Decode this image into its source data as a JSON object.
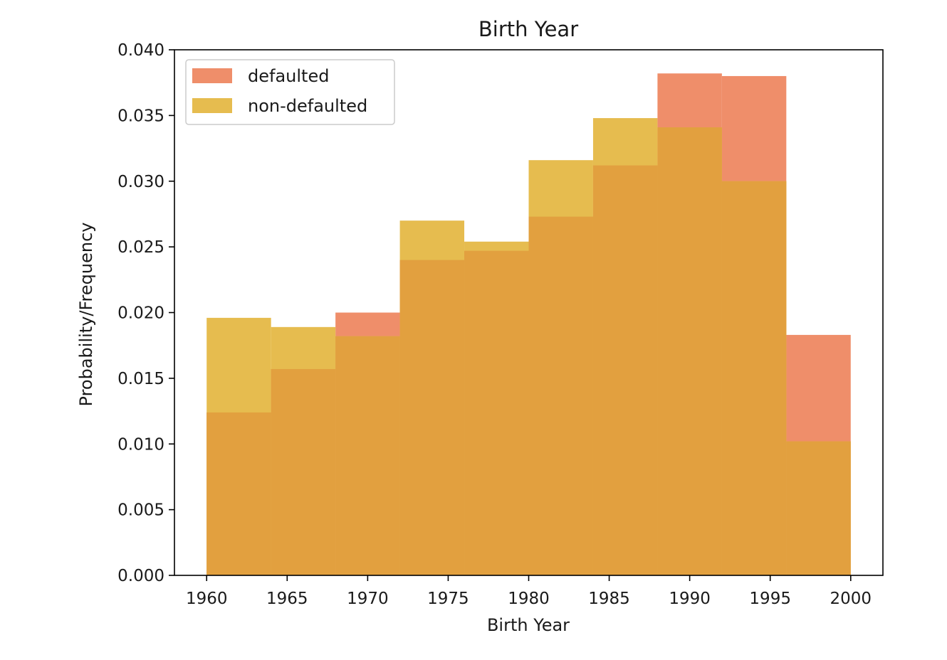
{
  "chart_data": {
    "type": "bar",
    "title": "Birth Year",
    "xlabel": "Birth Year",
    "ylabel": "Probability/Frequency",
    "xlim": [
      1958,
      2002
    ],
    "ylim": [
      0,
      0.04
    ],
    "xticks": [
      "1960",
      "1965",
      "1970",
      "1975",
      "1980",
      "1985",
      "1990",
      "1995",
      "2000"
    ],
    "yticks": [
      "0.000",
      "0.005",
      "0.010",
      "0.015",
      "0.020",
      "0.025",
      "0.030",
      "0.035",
      "0.040"
    ],
    "bin_edges": [
      1960,
      1964,
      1968,
      1972,
      1976,
      1980,
      1984,
      1988,
      1992,
      1996,
      2000
    ],
    "legend_position": "upper-left",
    "grid": false,
    "series": [
      {
        "name": "defaulted",
        "color": "#ef8e6a",
        "values": [
          0.0124,
          0.0157,
          0.02,
          0.024,
          0.0247,
          0.0273,
          0.0312,
          0.0382,
          0.038,
          0.0183
        ]
      },
      {
        "name": "non-defaulted",
        "color": "#e6bc4f",
        "values": [
          0.0196,
          0.0189,
          0.0182,
          0.027,
          0.0254,
          0.0316,
          0.0348,
          0.0341,
          0.03,
          0.0102
        ]
      }
    ],
    "overlap_color": "#e2a03f"
  }
}
